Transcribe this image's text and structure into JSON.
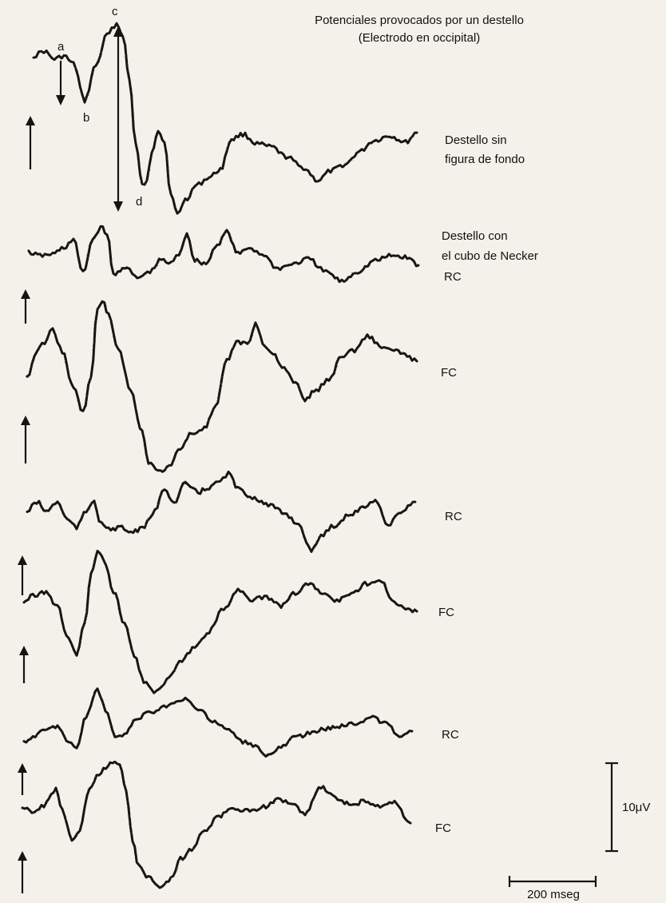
{
  "title": {
    "line1": "Potenciales provocados por un destello",
    "line2": "(Electrodo en occipital)"
  },
  "peak_labels": {
    "a": "a",
    "b": "b",
    "c": "c",
    "d": "d"
  },
  "conditions": {
    "no_background": {
      "line1": "Destello sin",
      "line2": "figura de fondo"
    },
    "necker": {
      "line1": "Destello con",
      "line2": "el cubo de Necker"
    }
  },
  "traces": [
    {
      "id": "trace-no-background",
      "label": ""
    },
    {
      "id": "trace-necker-rc-1",
      "label": "RC"
    },
    {
      "id": "trace-necker-fc-1",
      "label": "FC"
    },
    {
      "id": "trace-necker-rc-2",
      "label": "RC"
    },
    {
      "id": "trace-necker-fc-2",
      "label": "FC"
    },
    {
      "id": "trace-necker-rc-3",
      "label": "RC"
    },
    {
      "id": "trace-necker-fc-3",
      "label": "FC"
    }
  ],
  "scale": {
    "voltage": "10μV",
    "time": "200 mseg"
  },
  "colors": {
    "ink": "#141414",
    "paper": "#f4f1ea"
  },
  "icons": {
    "polarity_marker": "up-arrow-icon"
  }
}
